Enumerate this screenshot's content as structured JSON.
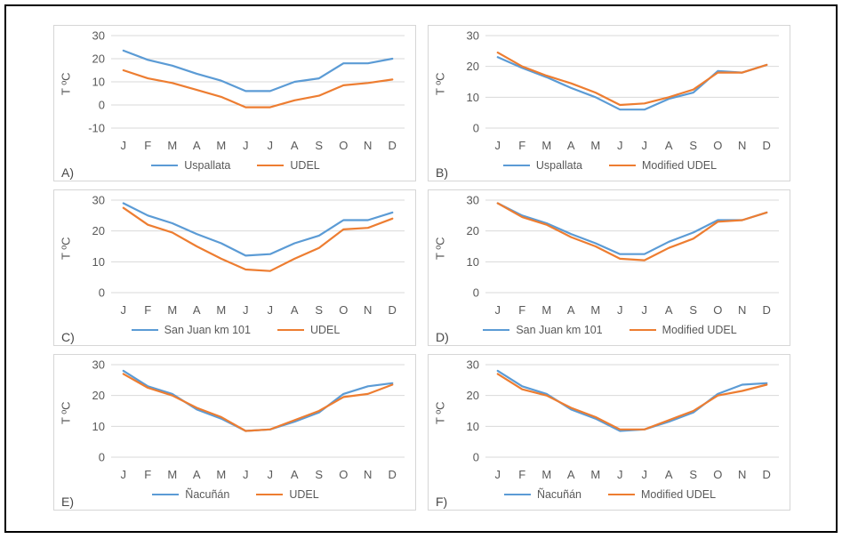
{
  "figure": {
    "months": [
      "J",
      "F",
      "M",
      "A",
      "M",
      "J",
      "J",
      "A",
      "S",
      "O",
      "N",
      "D"
    ],
    "y_axis_title": "T ºC",
    "colors": {
      "series1": "#5B9BD5",
      "series2": "#ED7D31",
      "gridline": "#D9D9D9",
      "text": "#595959",
      "panel_border": "#D6D6D6",
      "frame": "#000000"
    }
  },
  "chart_data": [
    {
      "type": "line",
      "panel_label": "A)",
      "ylabel": "T ºC",
      "x": [
        "J",
        "F",
        "M",
        "A",
        "M",
        "J",
        "J",
        "A",
        "S",
        "O",
        "N",
        "D"
      ],
      "yticks": [
        30,
        20,
        10,
        0,
        -10
      ],
      "ylim": [
        -10,
        30
      ],
      "grid": true,
      "legend_position": "bottom",
      "series": [
        {
          "name": "Uspallata",
          "values": [
            23.5,
            19.5,
            17,
            13.5,
            10.5,
            6,
            6,
            10,
            11.5,
            18,
            18,
            20
          ]
        },
        {
          "name": "UDEL",
          "values": [
            15,
            11.5,
            9.5,
            6.5,
            3.5,
            -1,
            -1,
            2,
            4,
            8.5,
            9.5,
            11
          ]
        }
      ]
    },
    {
      "type": "line",
      "panel_label": "B)",
      "ylabel": "T ºC",
      "x": [
        "J",
        "F",
        "M",
        "A",
        "M",
        "J",
        "J",
        "A",
        "S",
        "O",
        "N",
        "D"
      ],
      "yticks": [
        30,
        20,
        10,
        0
      ],
      "ylim": [
        0,
        30
      ],
      "grid": true,
      "legend_position": "bottom",
      "series": [
        {
          "name": "Uspallata",
          "values": [
            23,
            19.5,
            16.5,
            13,
            10,
            6,
            6,
            9.5,
            11.5,
            18.5,
            18,
            20.5
          ]
        },
        {
          "name": "Modified UDEL",
          "values": [
            24.5,
            20,
            17,
            14.5,
            11.5,
            7.5,
            8,
            10,
            12.5,
            18,
            18,
            20.5
          ]
        }
      ]
    },
    {
      "type": "line",
      "panel_label": "C)",
      "ylabel": "T ºC",
      "x": [
        "J",
        "F",
        "M",
        "A",
        "M",
        "J",
        "J",
        "A",
        "S",
        "O",
        "N",
        "D"
      ],
      "yticks": [
        30,
        20,
        10,
        0
      ],
      "ylim": [
        0,
        30
      ],
      "grid": true,
      "legend_position": "bottom",
      "series": [
        {
          "name": "San Juan km 101",
          "values": [
            29,
            25,
            22.5,
            19,
            16,
            12,
            12.5,
            16,
            18.5,
            23.5,
            23.5,
            26
          ]
        },
        {
          "name": "UDEL",
          "values": [
            27.5,
            22,
            19.5,
            15,
            11,
            7.5,
            7,
            11,
            14.5,
            20.5,
            21,
            24
          ]
        }
      ]
    },
    {
      "type": "line",
      "panel_label": "D)",
      "ylabel": "T ºC",
      "x": [
        "J",
        "F",
        "M",
        "A",
        "M",
        "J",
        "J",
        "A",
        "S",
        "O",
        "N",
        "D"
      ],
      "yticks": [
        30,
        20,
        10,
        0
      ],
      "ylim": [
        0,
        30
      ],
      "grid": true,
      "legend_position": "bottom",
      "series": [
        {
          "name": "San Juan km 101",
          "values": [
            29,
            25,
            22.5,
            19,
            16,
            12.5,
            12.5,
            16.5,
            19.5,
            23.5,
            23.5,
            26
          ]
        },
        {
          "name": "Modified UDEL",
          "values": [
            29,
            24.5,
            22,
            18,
            15,
            11,
            10.5,
            14.5,
            17.5,
            23,
            23.5,
            26
          ]
        }
      ]
    },
    {
      "type": "line",
      "panel_label": "E)",
      "ylabel": "T ºC",
      "x": [
        "J",
        "F",
        "M",
        "A",
        "M",
        "J",
        "J",
        "A",
        "S",
        "O",
        "N",
        "D"
      ],
      "yticks": [
        30,
        20,
        10,
        0
      ],
      "ylim": [
        0,
        30
      ],
      "grid": true,
      "legend_position": "bottom",
      "series": [
        {
          "name": "Ñacuñán",
          "values": [
            28,
            23,
            20.5,
            15.5,
            12.5,
            8.5,
            9,
            11.5,
            14.5,
            20.5,
            23,
            24
          ]
        },
        {
          "name": "UDEL",
          "values": [
            27,
            22.5,
            20,
            16,
            13,
            8.5,
            9,
            12,
            15,
            19.5,
            20.5,
            23.5
          ]
        }
      ]
    },
    {
      "type": "line",
      "panel_label": "F)",
      "ylabel": "T ºC",
      "x": [
        "J",
        "F",
        "M",
        "A",
        "M",
        "J",
        "J",
        "A",
        "S",
        "O",
        "N",
        "D"
      ],
      "yticks": [
        30,
        20,
        10,
        0
      ],
      "ylim": [
        0,
        30
      ],
      "grid": true,
      "legend_position": "bottom",
      "series": [
        {
          "name": "Ñacuñán",
          "values": [
            28,
            23,
            20.5,
            15.5,
            12.5,
            8.5,
            9,
            11.5,
            14.5,
            20.5,
            23.5,
            24
          ]
        },
        {
          "name": "Modified UDEL",
          "values": [
            27,
            22,
            20,
            16,
            13,
            9,
            9,
            12,
            15,
            20,
            21.5,
            23.5
          ]
        }
      ]
    }
  ]
}
